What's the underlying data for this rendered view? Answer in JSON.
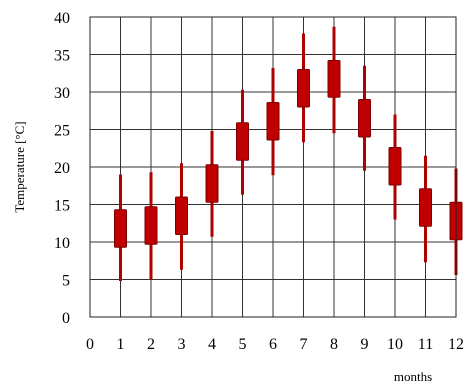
{
  "chart_data": {
    "type": "candlestick",
    "xlabel": "months",
    "ylabel": "Temperature [°C]",
    "xlim": [
      0,
      12
    ],
    "ylim": [
      0,
      40
    ],
    "x_ticks": [
      "0",
      "1",
      "2",
      "3",
      "4",
      "5",
      "6",
      "7",
      "8",
      "9",
      "10",
      "11",
      "12"
    ],
    "y_ticks": [
      "0",
      "5",
      "10",
      "15",
      "20",
      "25",
      "30",
      "35",
      "40"
    ],
    "grid": true,
    "legend": "none",
    "colors": {
      "box": "#c00000",
      "box_edge": "#7a0000",
      "whisker": "#b00000"
    },
    "series": [
      {
        "x": 1,
        "low": 4.8,
        "q1": 9.3,
        "q3": 14.3,
        "high": 19.0
      },
      {
        "x": 2,
        "low": 5.0,
        "q1": 9.7,
        "q3": 14.7,
        "high": 19.3
      },
      {
        "x": 3,
        "low": 6.3,
        "q1": 11.0,
        "q3": 16.0,
        "high": 20.5
      },
      {
        "x": 4,
        "low": 10.7,
        "q1": 15.3,
        "q3": 20.3,
        "high": 24.8
      },
      {
        "x": 5,
        "low": 16.3,
        "q1": 20.9,
        "q3": 25.9,
        "high": 30.3
      },
      {
        "x": 6,
        "low": 18.9,
        "q1": 23.6,
        "q3": 28.6,
        "high": 33.2
      },
      {
        "x": 7,
        "low": 23.3,
        "q1": 28.0,
        "q3": 33.0,
        "high": 37.8
      },
      {
        "x": 8,
        "low": 24.5,
        "q1": 29.3,
        "q3": 34.2,
        "high": 38.7
      },
      {
        "x": 9,
        "low": 19.5,
        "q1": 24.0,
        "q3": 29.0,
        "high": 33.5
      },
      {
        "x": 10,
        "low": 13.0,
        "q1": 17.6,
        "q3": 22.6,
        "high": 27.0
      },
      {
        "x": 11,
        "low": 7.3,
        "q1": 12.1,
        "q3": 17.1,
        "high": 21.5
      },
      {
        "x": 12,
        "low": 5.6,
        "q1": 10.3,
        "q3": 15.3,
        "high": 19.8
      }
    ]
  }
}
